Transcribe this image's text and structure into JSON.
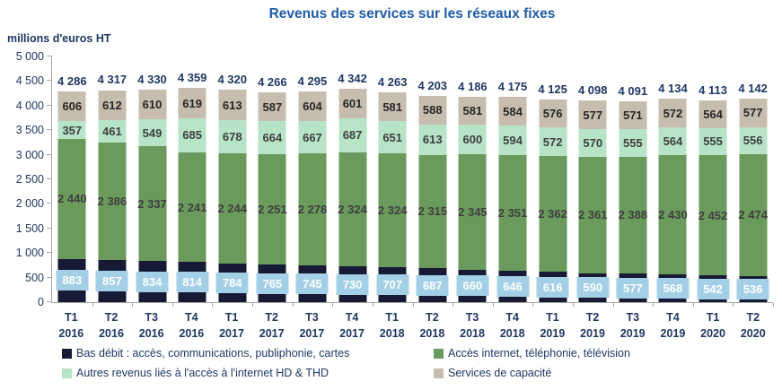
{
  "chart_data": {
    "type": "bar",
    "stacked": true,
    "title": "Revenus des services sur les réseaux fixes",
    "unit_label": "millions d'euros HT",
    "categories": [
      "T1 2016",
      "T2 2016",
      "T3 2016",
      "T4 2016",
      "T1 2017",
      "T2 2017",
      "T3 2017",
      "T4 2017",
      "T1 2018",
      "T2 2018",
      "T3 2018",
      "T4 2018",
      "T1 2019",
      "T2 2019",
      "T3 2019",
      "T4 2019",
      "T1 2020",
      "T2 2020"
    ],
    "series": [
      {
        "name": "Bas débit : accès, communications, publiphonie, cartes",
        "slug": "bas-debit",
        "color": "#161A34",
        "label_color": "#FFFFFF",
        "label_chip": true,
        "chip_color": "#A3D0E6",
        "values": [
          883,
          857,
          834,
          814,
          784,
          765,
          745,
          730,
          707,
          687,
          660,
          646,
          616,
          590,
          577,
          568,
          542,
          536
        ]
      },
      {
        "name": "Accès internet, téléphonie, télévision",
        "slug": "acces-internet",
        "color": "#6A9A5C",
        "label_color": "#3F3F3F",
        "label_chip": false,
        "values": [
          2440,
          2386,
          2337,
          2241,
          2244,
          2251,
          2278,
          2324,
          2324,
          2315,
          2345,
          2351,
          2362,
          2361,
          2388,
          2430,
          2452,
          2474
        ]
      },
      {
        "name": "Autres revenus liés à l'accès à l'internet HD & THD",
        "slug": "autres-revenus-hd-thd",
        "color": "#B7E3C7",
        "label_color": "#3F3F3F",
        "label_chip": false,
        "values": [
          357,
          461,
          549,
          685,
          678,
          664,
          667,
          687,
          651,
          613,
          600,
          594,
          572,
          570,
          555,
          564,
          555,
          556
        ]
      },
      {
        "name": "Services de capacité",
        "slug": "services-de-capacite",
        "color": "#C7BDAF",
        "label_color": "#262626",
        "label_chip": false,
        "values": [
          606,
          612,
          610,
          619,
          613,
          587,
          604,
          601,
          581,
          588,
          581,
          584,
          576,
          577,
          571,
          572,
          564,
          577
        ]
      }
    ],
    "totals": [
      4286,
      4317,
      4330,
      4359,
      4320,
      4266,
      4295,
      4342,
      4263,
      4203,
      4186,
      4175,
      4125,
      4098,
      4091,
      4134,
      4113,
      4142
    ],
    "ylim": [
      0,
      5000
    ],
    "ytick_step": 500,
    "grid": false,
    "legend_position": "bottom-two-columns"
  },
  "colors": {
    "title_text": "#1F5BA8",
    "axis_line": "#A6A6A6",
    "tick_text": "#1F3864",
    "total_text": "#1F3864",
    "legend_text": "#1F3864"
  }
}
